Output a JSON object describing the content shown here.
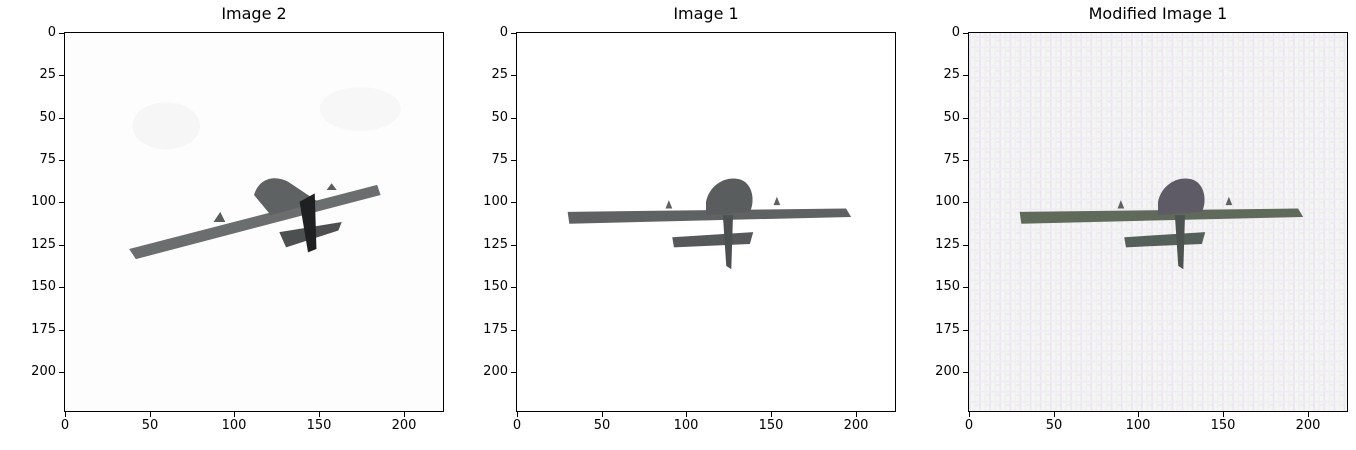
{
  "panels": [
    {
      "title": "Image 2",
      "image": "airplane-rotated"
    },
    {
      "title": "Image 1",
      "image": "airplane-level"
    },
    {
      "title": "Modified Image 1",
      "image": "airplane-level-noisy"
    }
  ],
  "axis": {
    "xlim": [
      -0.5,
      223.5
    ],
    "ylim": [
      223.5,
      -0.5
    ],
    "x_ticks": [
      0,
      50,
      100,
      150,
      200
    ],
    "y_ticks": [
      0,
      25,
      50,
      75,
      100,
      125,
      150,
      175,
      200
    ]
  },
  "colors": {
    "aircraft_body": "#5f6263",
    "aircraft_shadow": "#2a2c2d",
    "noise_tint": "#f2eaf5"
  }
}
